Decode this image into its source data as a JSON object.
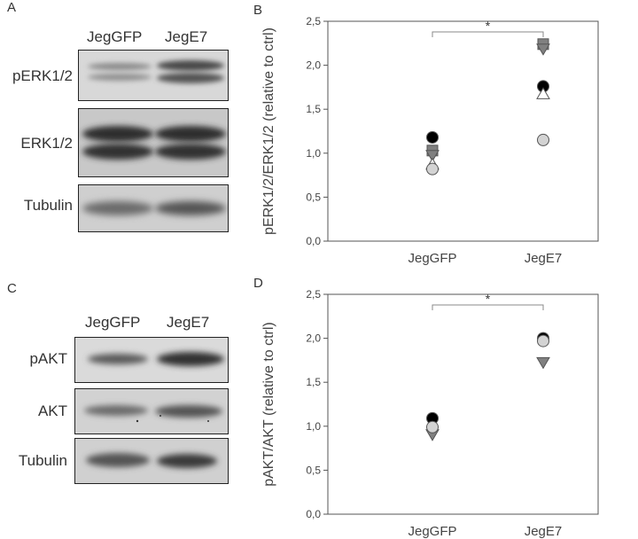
{
  "panels": {
    "A": {
      "letter": "A",
      "lanes": [
        "JegGFP",
        "JegE7"
      ],
      "rows": [
        {
          "label": "pERK1/2",
          "pattern": "double-band-weak-strong"
        },
        {
          "label": "ERK1/2",
          "pattern": "double-band-equal"
        },
        {
          "label": "Tubulin",
          "pattern": "single-band"
        }
      ]
    },
    "C": {
      "letter": "C",
      "lanes": [
        "JegGFP",
        "JegE7"
      ],
      "rows": [
        {
          "label": "pAKT",
          "pattern": "single-band-weak-strong"
        },
        {
          "label": "AKT",
          "pattern": "single-band"
        },
        {
          "label": "Tubulin",
          "pattern": "single-band"
        }
      ]
    }
  },
  "chart_data": [
    {
      "letter": "B",
      "type": "scatter",
      "ylabel": "pERK1/2/ERK1/2 (relative to ctrl)",
      "categories": [
        "JegGFP",
        "JegE7"
      ],
      "ylim": [
        0,
        2.5
      ],
      "yticks": [
        "0,0",
        "0,5",
        "1,0",
        "1,5",
        "2,0",
        "2,5"
      ],
      "significance": "*",
      "series": [
        {
          "marker": "circle",
          "color": "#000000",
          "values": [
            1.18,
            1.76
          ]
        },
        {
          "marker": "square",
          "color": "#808080",
          "values": [
            1.03,
            2.24
          ]
        },
        {
          "marker": "triangle-down",
          "color": "#808080",
          "values": [
            0.98,
            2.19
          ]
        },
        {
          "marker": "triangle-up",
          "color": "#ffffff",
          "values": [
            0.87,
            1.67
          ]
        },
        {
          "marker": "circle",
          "color": "#d3d3d3",
          "values": [
            0.82,
            1.15
          ]
        }
      ]
    },
    {
      "letter": "D",
      "type": "scatter",
      "ylabel": "pAKT/AKT (relative to ctrl)",
      "categories": [
        "JegGFP",
        "JegE7"
      ],
      "ylim": [
        0,
        2.5
      ],
      "yticks": [
        "0,0",
        "0,5",
        "1,0",
        "1,5",
        "2,0",
        "2,5"
      ],
      "significance": "*",
      "series": [
        {
          "marker": "circle",
          "color": "#000000",
          "values": [
            1.09,
            2.0
          ]
        },
        {
          "marker": "triangle-down",
          "color": "#808080",
          "values": [
            0.91,
            1.73
          ]
        },
        {
          "marker": "circle",
          "color": "#d3d3d3",
          "values": [
            0.99,
            1.97
          ]
        }
      ]
    }
  ]
}
